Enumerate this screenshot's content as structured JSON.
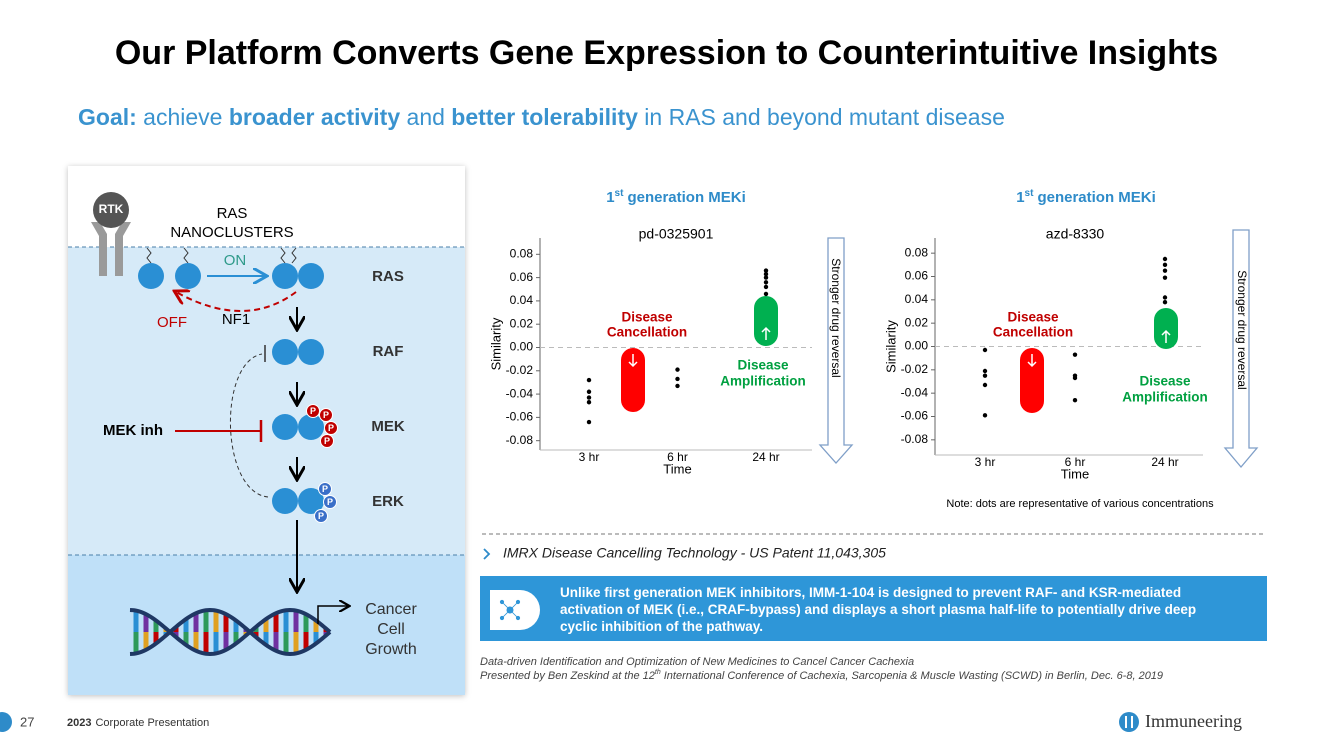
{
  "slide": {
    "title": "Our Platform Converts Gene Expression to Counterintuitive Insights",
    "goal": [
      "Goal:",
      "achieve",
      "broader activity",
      "and",
      "better tolerability",
      "in RAS and beyond mutant disease"
    ]
  },
  "diagram": {
    "rtk": "RTK",
    "nanoclusters": [
      "RAS",
      "NANOCLUSTERS"
    ],
    "on": "ON",
    "off": "OFF",
    "nf1": "NF1",
    "levels": [
      "RAS",
      "RAF",
      "MEK",
      "ERK"
    ],
    "inhibitor": "MEK inh",
    "phospho": "P",
    "outcome": [
      "Cancer",
      "Cell",
      "Growth"
    ]
  },
  "chart_data": [
    {
      "type": "scatter",
      "heading": [
        "1",
        "st",
        "generation MEKi"
      ],
      "title": "pd-0325901",
      "xlabel": "Time",
      "ylabel": "Similarity",
      "categories": [
        "3 hr",
        "6 hr",
        "24 hr"
      ],
      "values": [
        [
          -0.028,
          -0.038,
          -0.043,
          -0.047,
          -0.064
        ],
        [
          -0.019,
          -0.027,
          -0.033
        ],
        [
          0.066,
          0.063,
          0.06,
          0.056,
          0.052,
          0.046
        ]
      ],
      "color": "#000000",
      "ylim": [
        -0.088,
        0.094
      ],
      "yticks": [
        -0.08,
        -0.06,
        -0.04,
        -0.02,
        {
          "value": 0,
          "label": "0.00"
        },
        0.02,
        0.04,
        0.06,
        0.08
      ],
      "annotations": {
        "cancellation": [
          "Disease",
          "Cancellation"
        ],
        "amplification": [
          "Disease",
          "Amplification"
        ],
        "arrow": "Stronger drug reversal"
      }
    },
    {
      "type": "scatter",
      "heading": [
        "1",
        "st",
        "generation MEKi"
      ],
      "title": "azd-8330",
      "xlabel": "Time",
      "ylabel": "Similarity",
      "categories": [
        "3 hr",
        "6 hr",
        "24 hr"
      ],
      "values": [
        [
          -0.003,
          -0.021,
          -0.025,
          -0.033,
          -0.059
        ],
        [
          -0.007,
          -0.025,
          -0.027,
          -0.046
        ],
        [
          0.075,
          0.07,
          0.065,
          0.059,
          0.042,
          0.038
        ]
      ],
      "color": "#000000",
      "ylim": [
        -0.093,
        0.093
      ],
      "yticks": [
        -0.08,
        -0.06,
        -0.04,
        -0.02,
        {
          "value": 0,
          "label": "0.00"
        },
        0.02,
        0.04,
        0.06,
        0.08
      ],
      "annotations": {
        "cancellation": [
          "Disease",
          "Cancellation"
        ],
        "amplification": [
          "Disease",
          "Amplification"
        ],
        "arrow": "Stronger drug reversal"
      }
    }
  ],
  "note": "Note: dots are representative of various concentrations",
  "patent": "IMRX Disease Cancelling Technology - US Patent 11,043,305",
  "callout": "Unlike first generation MEK inhibitors, IMM-1-104 is designed to prevent RAF- and KSR-mediated activation of MEK (i.e., CRAF-bypass) and displays a short plasma half-life to potentially drive deep cyclic inhibition of the pathway.",
  "citation": {
    "line1": "Data-driven Identification and Optimization of New Medicines to Cancel Cancer Cachexia",
    "line2": [
      "Presented by Ben Zeskind at the 12",
      "th",
      "International Conference of Cachexia, Sarcopenia & Muscle Wasting (SCWD) in Berlin, Dec. 6-8, 2019"
    ]
  },
  "footer": {
    "page": "27",
    "year": "2023",
    "label": "Corporate Presentation",
    "brand": "Immuneering"
  }
}
